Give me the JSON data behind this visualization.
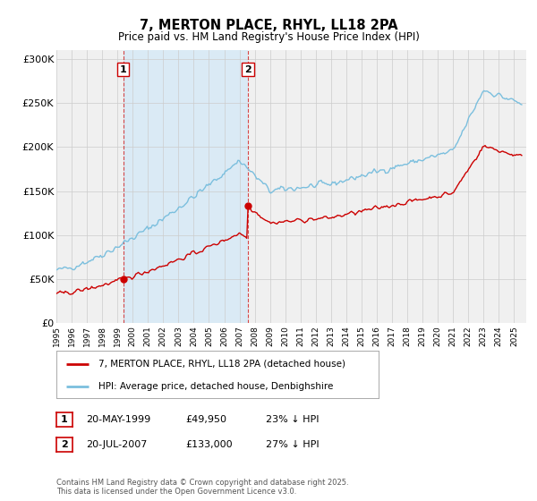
{
  "title": "7, MERTON PLACE, RHYL, LL18 2PA",
  "subtitle": "Price paid vs. HM Land Registry's House Price Index (HPI)",
  "ylim": [
    0,
    310000
  ],
  "yticks": [
    0,
    50000,
    100000,
    150000,
    200000,
    250000,
    300000
  ],
  "ytick_labels": [
    "£0",
    "£50K",
    "£100K",
    "£150K",
    "£200K",
    "£250K",
    "£300K"
  ],
  "sale1_date": 1999.38,
  "sale1_price": 49950,
  "sale2_date": 2007.55,
  "sale2_price": 133000,
  "hpi_color": "#7bbfde",
  "hpi_fill_color": "#daeaf5",
  "sold_color": "#cc0000",
  "vline_color": "#cc0000",
  "grid_color": "#cccccc",
  "background_color": "#f0f0f0",
  "legend_label_sold": "7, MERTON PLACE, RHYL, LL18 2PA (detached house)",
  "legend_label_hpi": "HPI: Average price, detached house, Denbighshire",
  "footnote": "Contains HM Land Registry data © Crown copyright and database right 2025.\nThis data is licensed under the Open Government Licence v3.0."
}
